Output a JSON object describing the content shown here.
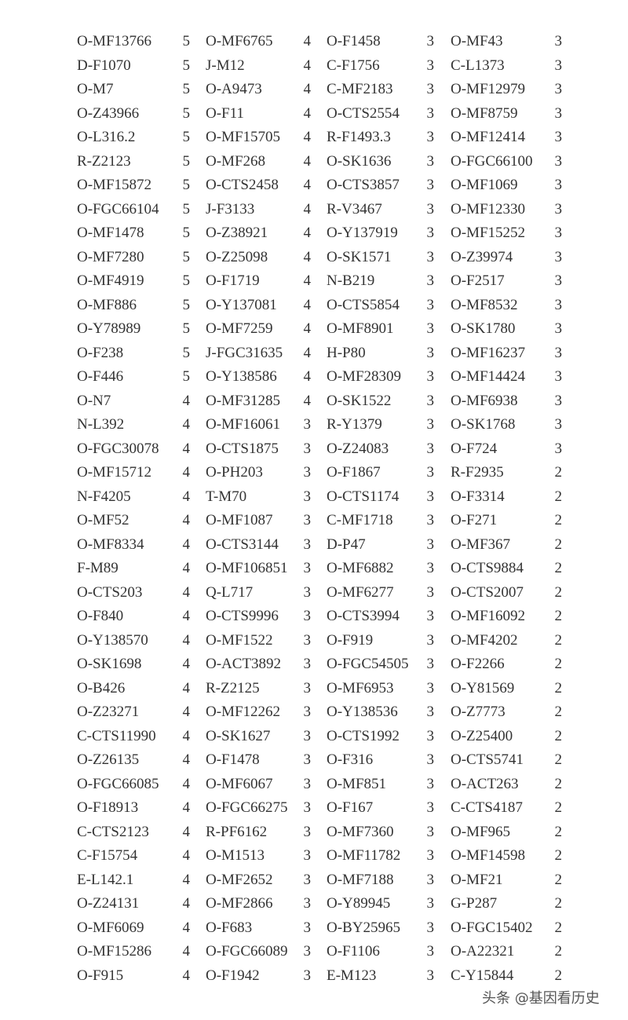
{
  "table": {
    "rows": [
      [
        [
          "O-MF13766",
          "5"
        ],
        [
          "O-MF6765",
          "4"
        ],
        [
          "O-F1458",
          "3"
        ],
        [
          "O-MF43",
          "3"
        ]
      ],
      [
        [
          "D-F1070",
          "5"
        ],
        [
          "J-M12",
          "4"
        ],
        [
          "C-F1756",
          "3"
        ],
        [
          "C-L1373",
          "3"
        ]
      ],
      [
        [
          "O-M7",
          "5"
        ],
        [
          "O-A9473",
          "4"
        ],
        [
          "C-MF2183",
          "3"
        ],
        [
          "O-MF12979",
          "3"
        ]
      ],
      [
        [
          "O-Z43966",
          "5"
        ],
        [
          "O-F11",
          "4"
        ],
        [
          "O-CTS2554",
          "3"
        ],
        [
          "O-MF8759",
          "3"
        ]
      ],
      [
        [
          "O-L316.2",
          "5"
        ],
        [
          "O-MF15705",
          "4"
        ],
        [
          "R-F1493.3",
          "3"
        ],
        [
          "O-MF12414",
          "3"
        ]
      ],
      [
        [
          "R-Z2123",
          "5"
        ],
        [
          "O-MF268",
          "4"
        ],
        [
          "O-SK1636",
          "3"
        ],
        [
          "O-FGC66100",
          "3"
        ]
      ],
      [
        [
          "O-MF15872",
          "5"
        ],
        [
          "O-CTS2458",
          "4"
        ],
        [
          "O-CTS3857",
          "3"
        ],
        [
          "O-MF1069",
          "3"
        ]
      ],
      [
        [
          "O-FGC66104",
          "5"
        ],
        [
          "J-F3133",
          "4"
        ],
        [
          "R-V3467",
          "3"
        ],
        [
          "O-MF12330",
          "3"
        ]
      ],
      [
        [
          "O-MF1478",
          "5"
        ],
        [
          "O-Z38921",
          "4"
        ],
        [
          "O-Y137919",
          "3"
        ],
        [
          "O-MF15252",
          "3"
        ]
      ],
      [
        [
          "O-MF7280",
          "5"
        ],
        [
          "O-Z25098",
          "4"
        ],
        [
          "O-SK1571",
          "3"
        ],
        [
          "O-Z39974",
          "3"
        ]
      ],
      [
        [
          "O-MF4919",
          "5"
        ],
        [
          "O-F1719",
          "4"
        ],
        [
          "N-B219",
          "3"
        ],
        [
          "O-F2517",
          "3"
        ]
      ],
      [
        [
          "O-MF886",
          "5"
        ],
        [
          "O-Y137081",
          "4"
        ],
        [
          "O-CTS5854",
          "3"
        ],
        [
          "O-MF8532",
          "3"
        ]
      ],
      [
        [
          "O-Y78989",
          "5"
        ],
        [
          "O-MF7259",
          "4"
        ],
        [
          "O-MF8901",
          "3"
        ],
        [
          "O-SK1780",
          "3"
        ]
      ],
      [
        [
          "O-F238",
          "5"
        ],
        [
          "J-FGC31635",
          "4"
        ],
        [
          "H-P80",
          "3"
        ],
        [
          "O-MF16237",
          "3"
        ]
      ],
      [
        [
          "O-F446",
          "5"
        ],
        [
          "O-Y138586",
          "4"
        ],
        [
          "O-MF28309",
          "3"
        ],
        [
          "O-MF14424",
          "3"
        ]
      ],
      [
        [
          "O-N7",
          "4"
        ],
        [
          "O-MF31285",
          "4"
        ],
        [
          "O-SK1522",
          "3"
        ],
        [
          "O-MF6938",
          "3"
        ]
      ],
      [
        [
          "N-L392",
          "4"
        ],
        [
          "O-MF16061",
          "3"
        ],
        [
          "R-Y1379",
          "3"
        ],
        [
          "O-SK1768",
          "3"
        ]
      ],
      [
        [
          "O-FGC30078",
          "4"
        ],
        [
          "O-CTS1875",
          "3"
        ],
        [
          "O-Z24083",
          "3"
        ],
        [
          "O-F724",
          "3"
        ]
      ],
      [
        [
          "O-MF15712",
          "4"
        ],
        [
          "O-PH203",
          "3"
        ],
        [
          "O-F1867",
          "3"
        ],
        [
          "R-F2935",
          "2"
        ]
      ],
      [
        [
          "N-F4205",
          "4"
        ],
        [
          "T-M70",
          "3"
        ],
        [
          "O-CTS1174",
          "3"
        ],
        [
          "O-F3314",
          "2"
        ]
      ],
      [
        [
          "O-MF52",
          "4"
        ],
        [
          "O-MF1087",
          "3"
        ],
        [
          "C-MF1718",
          "3"
        ],
        [
          "O-F271",
          "2"
        ]
      ],
      [
        [
          "O-MF8334",
          "4"
        ],
        [
          "O-CTS3144",
          "3"
        ],
        [
          "D-P47",
          "3"
        ],
        [
          "O-MF367",
          "2"
        ]
      ],
      [
        [
          "F-M89",
          "4"
        ],
        [
          "O-MF106851",
          "3"
        ],
        [
          "O-MF6882",
          "3"
        ],
        [
          "O-CTS9884",
          "2"
        ]
      ],
      [
        [
          "O-CTS203",
          "4"
        ],
        [
          "Q-L717",
          "3"
        ],
        [
          "O-MF6277",
          "3"
        ],
        [
          "O-CTS2007",
          "2"
        ]
      ],
      [
        [
          "O-F840",
          "4"
        ],
        [
          "O-CTS9996",
          "3"
        ],
        [
          "O-CTS3994",
          "3"
        ],
        [
          "O-MF16092",
          "2"
        ]
      ],
      [
        [
          "O-Y138570",
          "4"
        ],
        [
          "O-MF1522",
          "3"
        ],
        [
          "O-F919",
          "3"
        ],
        [
          "O-MF4202",
          "2"
        ]
      ],
      [
        [
          "O-SK1698",
          "4"
        ],
        [
          "O-ACT3892",
          "3"
        ],
        [
          "O-FGC54505",
          "3"
        ],
        [
          "O-F2266",
          "2"
        ]
      ],
      [
        [
          "O-B426",
          "4"
        ],
        [
          "R-Z2125",
          "3"
        ],
        [
          "O-MF6953",
          "3"
        ],
        [
          "O-Y81569",
          "2"
        ]
      ],
      [
        [
          "O-Z23271",
          "4"
        ],
        [
          "O-MF12262",
          "3"
        ],
        [
          "O-Y138536",
          "3"
        ],
        [
          "O-Z7773",
          "2"
        ]
      ],
      [
        [
          "C-CTS11990",
          "4"
        ],
        [
          "O-SK1627",
          "3"
        ],
        [
          "O-CTS1992",
          "3"
        ],
        [
          "O-Z25400",
          "2"
        ]
      ],
      [
        [
          "O-Z26135",
          "4"
        ],
        [
          "O-F1478",
          "3"
        ],
        [
          "O-F316",
          "3"
        ],
        [
          "O-CTS5741",
          "2"
        ]
      ],
      [
        [
          "O-FGC66085",
          "4"
        ],
        [
          "O-MF6067",
          "3"
        ],
        [
          "O-MF851",
          "3"
        ],
        [
          "O-ACT263",
          "2"
        ]
      ],
      [
        [
          "O-F18913",
          "4"
        ],
        [
          "O-FGC66275",
          "3"
        ],
        [
          "O-F167",
          "3"
        ],
        [
          "C-CTS4187",
          "2"
        ]
      ],
      [
        [
          "C-CTS2123",
          "4"
        ],
        [
          "R-PF6162",
          "3"
        ],
        [
          "O-MF7360",
          "3"
        ],
        [
          "O-MF965",
          "2"
        ]
      ],
      [
        [
          "C-F15754",
          "4"
        ],
        [
          "O-M1513",
          "3"
        ],
        [
          "O-MF11782",
          "3"
        ],
        [
          "O-MF14598",
          "2"
        ]
      ],
      [
        [
          "E-L142.1",
          "4"
        ],
        [
          "O-MF2652",
          "3"
        ],
        [
          "O-MF7188",
          "3"
        ],
        [
          "O-MF21",
          "2"
        ]
      ],
      [
        [
          "O-Z24131",
          "4"
        ],
        [
          "O-MF2866",
          "3"
        ],
        [
          "O-Y89945",
          "3"
        ],
        [
          "G-P287",
          "2"
        ]
      ],
      [
        [
          "O-MF6069",
          "4"
        ],
        [
          "O-F683",
          "3"
        ],
        [
          "O-BY25965",
          "3"
        ],
        [
          "O-FGC15402",
          "2"
        ]
      ],
      [
        [
          "O-MF15286",
          "4"
        ],
        [
          "O-FGC66089",
          "3"
        ],
        [
          "O-F1106",
          "3"
        ],
        [
          "O-A22321",
          "2"
        ]
      ],
      [
        [
          "O-F915",
          "4"
        ],
        [
          "O-F1942",
          "3"
        ],
        [
          "E-M123",
          "3"
        ],
        [
          "C-Y15844",
          "2"
        ]
      ]
    ]
  },
  "watermark": "头条 @基因看历史"
}
